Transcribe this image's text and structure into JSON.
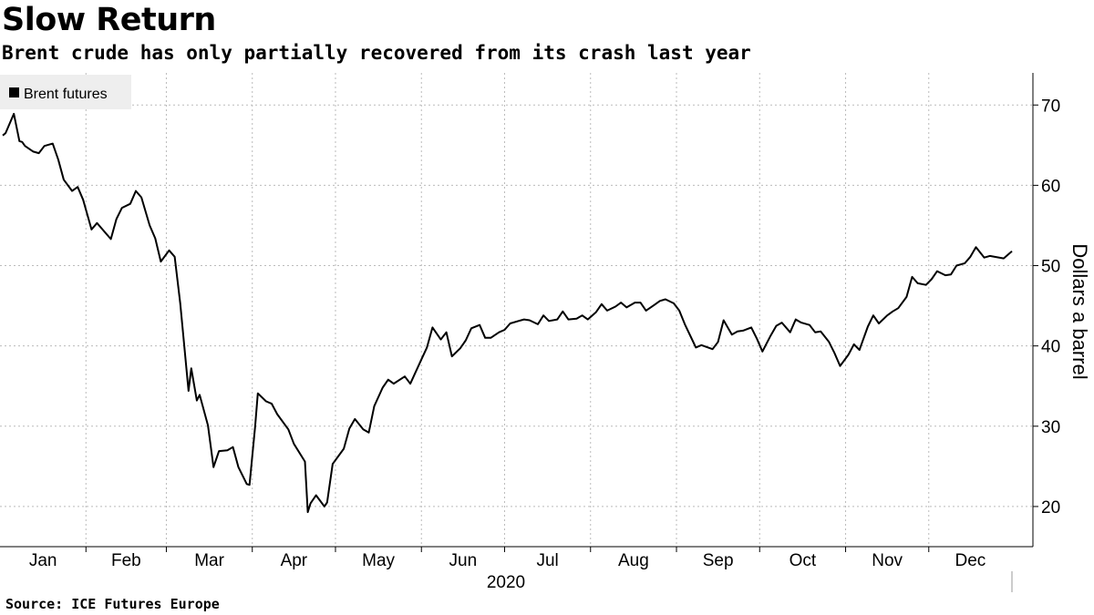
{
  "chart_data": {
    "type": "line",
    "title": "Slow Return",
    "subtitle": "Brent crude has only partially recovered from its crash last year",
    "source": "Source: ICE Futures Europe",
    "ylabel": "Dollars a barrel",
    "xlabel": "2020",
    "ylim": [
      15,
      74
    ],
    "yticks": [
      20,
      30,
      40,
      50,
      60,
      70
    ],
    "categories": [
      "Jan",
      "Feb",
      "Mar",
      "Apr",
      "May",
      "Jun",
      "Jul",
      "Aug",
      "Sep",
      "Oct",
      "Nov",
      "Dec"
    ],
    "grid": true,
    "legend": "top-left",
    "series": [
      {
        "name": "Brent futures",
        "color": "#000000",
        "x": [
          "2020-01-02",
          "2020-01-03",
          "2020-01-06",
          "2020-01-08",
          "2020-01-09",
          "2020-01-10",
          "2020-01-13",
          "2020-01-15",
          "2020-01-17",
          "2020-01-20",
          "2020-01-22",
          "2020-01-24",
          "2020-01-27",
          "2020-01-29",
          "2020-01-31",
          "2020-02-03",
          "2020-02-05",
          "2020-02-07",
          "2020-02-10",
          "2020-02-12",
          "2020-02-14",
          "2020-02-17",
          "2020-02-19",
          "2020-02-21",
          "2020-02-24",
          "2020-02-26",
          "2020-02-28",
          "2020-03-02",
          "2020-03-04",
          "2020-03-06",
          "2020-03-09",
          "2020-03-10",
          "2020-03-12",
          "2020-03-13",
          "2020-03-16",
          "2020-03-18",
          "2020-03-20",
          "2020-03-23",
          "2020-03-25",
          "2020-03-27",
          "2020-03-30",
          "2020-03-31",
          "2020-04-02",
          "2020-04-03",
          "2020-04-06",
          "2020-04-08",
          "2020-04-10",
          "2020-04-14",
          "2020-04-16",
          "2020-04-20",
          "2020-04-21",
          "2020-04-22",
          "2020-04-24",
          "2020-04-27",
          "2020-04-28",
          "2020-04-30",
          "2020-05-04",
          "2020-05-06",
          "2020-05-08",
          "2020-05-11",
          "2020-05-13",
          "2020-05-15",
          "2020-05-18",
          "2020-05-20",
          "2020-05-22",
          "2020-05-26",
          "2020-05-28",
          "2020-06-01",
          "2020-06-03",
          "2020-06-05",
          "2020-06-08",
          "2020-06-10",
          "2020-06-12",
          "2020-06-15",
          "2020-06-17",
          "2020-06-19",
          "2020-06-22",
          "2020-06-24",
          "2020-06-26",
          "2020-06-29",
          "2020-07-01",
          "2020-07-03",
          "2020-07-06",
          "2020-07-08",
          "2020-07-10",
          "2020-07-13",
          "2020-07-15",
          "2020-07-17",
          "2020-07-20",
          "2020-07-22",
          "2020-07-24",
          "2020-07-27",
          "2020-07-29",
          "2020-07-31",
          "2020-08-03",
          "2020-08-05",
          "2020-08-07",
          "2020-08-10",
          "2020-08-12",
          "2020-08-14",
          "2020-08-17",
          "2020-08-19",
          "2020-08-21",
          "2020-08-24",
          "2020-08-26",
          "2020-08-28",
          "2020-08-31",
          "2020-09-02",
          "2020-09-04",
          "2020-09-08",
          "2020-09-10",
          "2020-09-14",
          "2020-09-16",
          "2020-09-18",
          "2020-09-21",
          "2020-09-23",
          "2020-09-25",
          "2020-09-28",
          "2020-09-30",
          "2020-10-02",
          "2020-10-05",
          "2020-10-07",
          "2020-10-09",
          "2020-10-12",
          "2020-10-14",
          "2020-10-16",
          "2020-10-19",
          "2020-10-21",
          "2020-10-23",
          "2020-10-26",
          "2020-10-28",
          "2020-10-30",
          "2020-11-02",
          "2020-11-04",
          "2020-11-06",
          "2020-11-09",
          "2020-11-11",
          "2020-11-13",
          "2020-11-16",
          "2020-11-18",
          "2020-11-20",
          "2020-11-23",
          "2020-11-25",
          "2020-11-27",
          "2020-11-30",
          "2020-12-02",
          "2020-12-04",
          "2020-12-07",
          "2020-12-09",
          "2020-12-11",
          "2020-12-14",
          "2020-12-16",
          "2020-12-18",
          "2020-12-21",
          "2020-12-23",
          "2020-12-28",
          "2020-12-31"
        ],
        "values": [
          66.2,
          66.5,
          68.9,
          65.5,
          65.4,
          64.9,
          64.2,
          64.0,
          64.9,
          65.2,
          63.2,
          60.7,
          59.3,
          59.8,
          58.2,
          54.5,
          55.3,
          54.5,
          53.3,
          55.8,
          57.2,
          57.7,
          59.3,
          58.5,
          55.0,
          53.4,
          50.5,
          51.9,
          51.1,
          45.3,
          34.4,
          37.2,
          33.2,
          33.9,
          30.1,
          24.9,
          26.9,
          27.0,
          27.4,
          24.9,
          22.8,
          22.7,
          29.9,
          34.1,
          33.1,
          32.8,
          31.5,
          29.6,
          27.8,
          25.6,
          19.3,
          20.4,
          21.4,
          20.0,
          20.5,
          25.3,
          27.2,
          29.7,
          30.9,
          29.6,
          29.2,
          32.5,
          34.8,
          35.8,
          35.3,
          36.2,
          35.3,
          38.3,
          39.8,
          42.3,
          40.8,
          41.7,
          38.7,
          39.7,
          40.7,
          42.2,
          42.6,
          41.0,
          41.0,
          41.7,
          42.0,
          42.8,
          43.1,
          43.3,
          43.2,
          42.7,
          43.8,
          43.1,
          43.3,
          44.3,
          43.3,
          43.4,
          43.8,
          43.3,
          44.2,
          45.2,
          44.4,
          44.9,
          45.4,
          44.8,
          45.4,
          45.4,
          44.4,
          45.1,
          45.6,
          45.8,
          45.3,
          44.4,
          42.7,
          39.8,
          40.1,
          39.6,
          40.5,
          43.2,
          41.4,
          41.8,
          41.9,
          42.3,
          40.9,
          39.3,
          41.3,
          42.5,
          42.9,
          41.7,
          43.3,
          42.9,
          42.6,
          41.7,
          41.8,
          40.5,
          39.1,
          37.5,
          38.9,
          40.2,
          39.5,
          42.4,
          43.8,
          42.8,
          43.8,
          44.3,
          44.7,
          46.1,
          48.6,
          47.8,
          47.6,
          48.3,
          49.3,
          48.8,
          48.9,
          50.0,
          50.3,
          51.1,
          52.3,
          51.0,
          51.2,
          50.9,
          51.8
        ]
      }
    ]
  }
}
